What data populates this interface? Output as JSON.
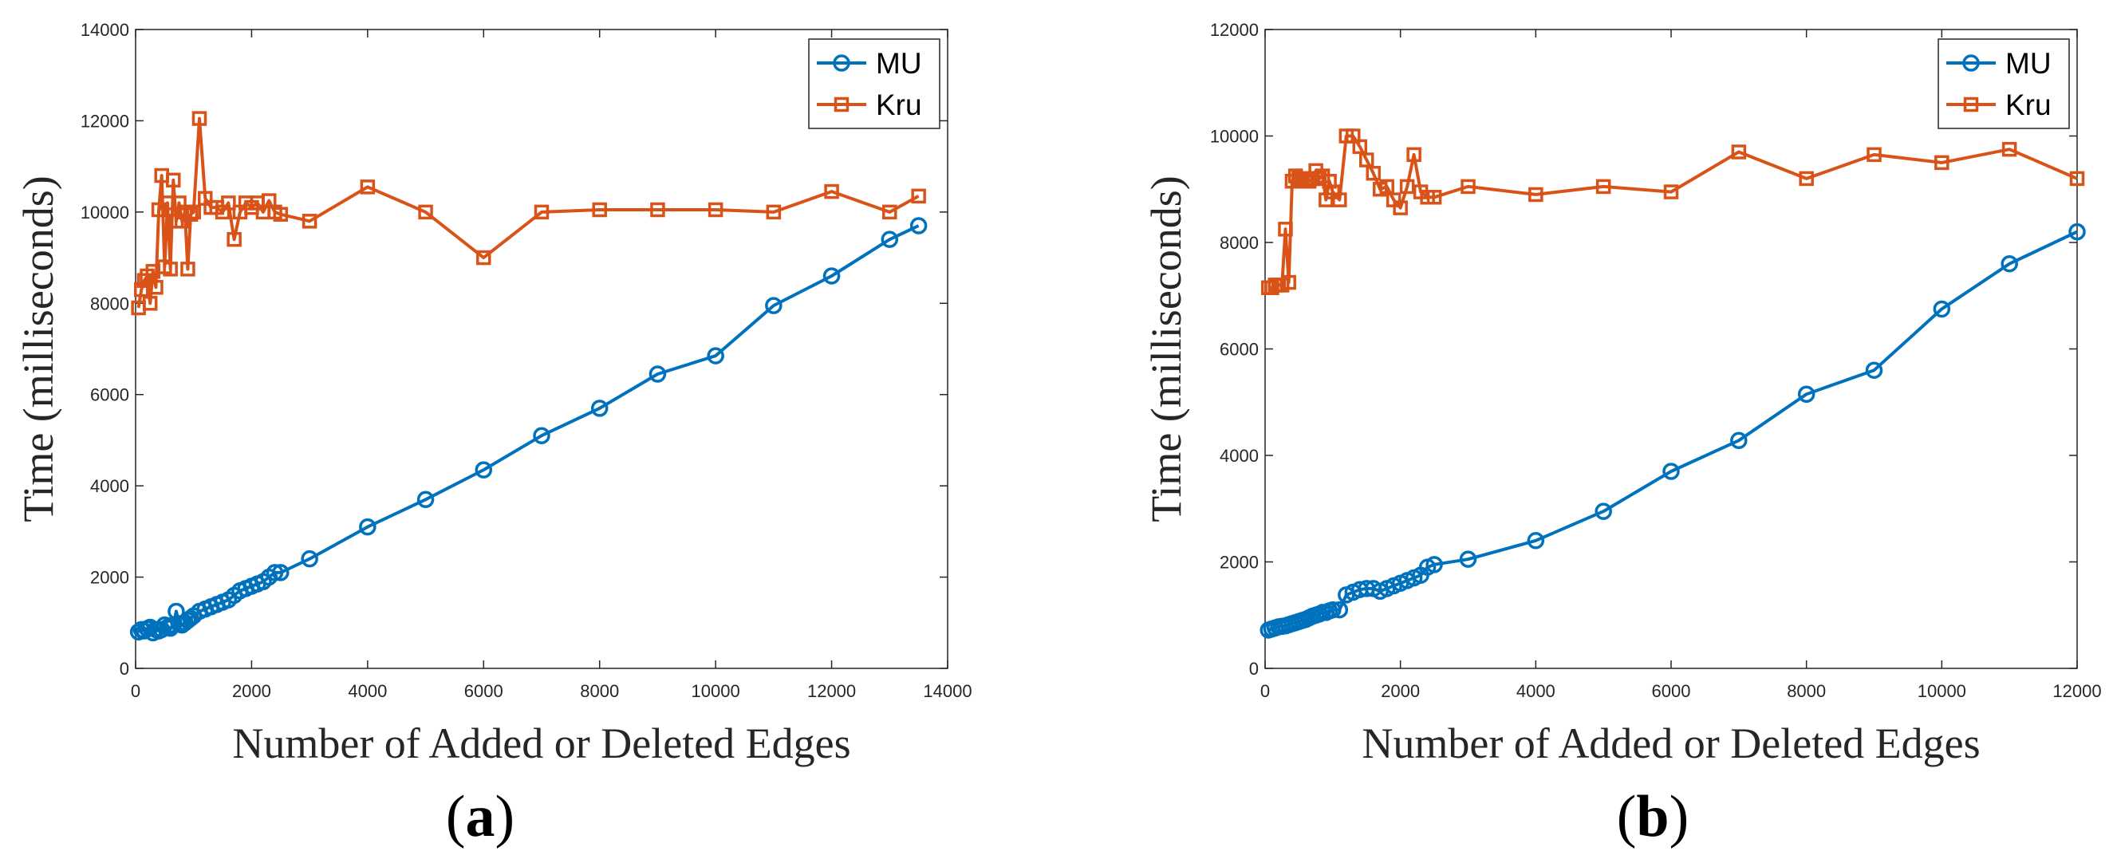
{
  "colors": {
    "mu": "#0072BD",
    "kru": "#D95319",
    "axis": "#262626"
  },
  "chart_data": [
    {
      "type": "line",
      "panel_label": "a",
      "xlabel": "Number of Added or Deleted Edges",
      "ylabel": "Time (milliseconds)",
      "xlim": [
        0,
        14000
      ],
      "ylim": [
        0,
        14000
      ],
      "xticks": [
        0,
        2000,
        4000,
        6000,
        8000,
        10000,
        12000,
        14000
      ],
      "yticks": [
        0,
        2000,
        4000,
        6000,
        8000,
        10000,
        12000,
        14000
      ],
      "legend_position": "top-right",
      "series": [
        {
          "name": "MU",
          "marker": "circle",
          "x": [
            50,
            100,
            150,
            200,
            250,
            300,
            350,
            400,
            450,
            500,
            550,
            600,
            650,
            700,
            750,
            800,
            850,
            900,
            950,
            1000,
            1100,
            1200,
            1300,
            1400,
            1500,
            1600,
            1700,
            1800,
            1900,
            2000,
            2100,
            2200,
            2300,
            2400,
            2500,
            3000,
            4000,
            5000,
            6000,
            7000,
            8000,
            9000,
            10000,
            11000,
            12000,
            13000,
            13500
          ],
          "y": [
            800,
            850,
            820,
            870,
            900,
            780,
            850,
            820,
            850,
            950,
            900,
            880,
            950,
            1250,
            980,
            950,
            1000,
            1050,
            1100,
            1150,
            1250,
            1300,
            1350,
            1400,
            1450,
            1500,
            1600,
            1700,
            1750,
            1800,
            1850,
            1900,
            2000,
            2100,
            2100,
            2400,
            3100,
            3700,
            4350,
            5100,
            5700,
            6450,
            6850,
            7950,
            8600,
            9400,
            9700
          ]
        },
        {
          "name": "Kru",
          "marker": "square",
          "x": [
            50,
            100,
            150,
            200,
            250,
            300,
            350,
            400,
            450,
            500,
            550,
            600,
            650,
            700,
            750,
            800,
            850,
            900,
            950,
            1000,
            1100,
            1200,
            1300,
            1400,
            1500,
            1600,
            1700,
            1800,
            1900,
            2000,
            2100,
            2200,
            2300,
            2400,
            2500,
            3000,
            4000,
            5000,
            6000,
            7000,
            8000,
            9000,
            10000,
            11000,
            12000,
            13000,
            13500
          ],
          "y": [
            7900,
            8300,
            8500,
            8600,
            8000,
            8700,
            8350,
            10050,
            10800,
            8800,
            10200,
            8750,
            10700,
            9800,
            10200,
            9800,
            10000,
            8750,
            9950,
            10000,
            12050,
            10300,
            10100,
            10100,
            10000,
            10200,
            9400,
            10000,
            10200,
            10100,
            10200,
            10000,
            10250,
            10000,
            9950,
            9800,
            10550,
            10000,
            9000,
            10000,
            10050,
            10050,
            10050,
            10000,
            10450,
            10000,
            10350
          ]
        }
      ]
    },
    {
      "type": "line",
      "panel_label": "b",
      "xlabel": "Number of Added or Deleted Edges",
      "ylabel": "Time (milliseconds)",
      "xlim": [
        0,
        12000
      ],
      "ylim": [
        0,
        12000
      ],
      "xticks": [
        0,
        2000,
        4000,
        6000,
        8000,
        10000,
        12000
      ],
      "yticks": [
        0,
        2000,
        4000,
        6000,
        8000,
        10000,
        12000
      ],
      "legend_position": "top-right",
      "series": [
        {
          "name": "MU",
          "marker": "circle",
          "x": [
            50,
            100,
            150,
            200,
            250,
            300,
            350,
            400,
            450,
            500,
            550,
            600,
            650,
            700,
            750,
            800,
            850,
            900,
            950,
            1000,
            1100,
            1200,
            1300,
            1400,
            1500,
            1600,
            1700,
            1800,
            1900,
            2000,
            2100,
            2200,
            2300,
            2400,
            2500,
            3000,
            4000,
            5000,
            6000,
            7000,
            8000,
            9000,
            10000,
            11000,
            12000
          ],
          "y": [
            720,
            740,
            760,
            780,
            790,
            800,
            820,
            840,
            860,
            880,
            900,
            920,
            950,
            980,
            1000,
            1020,
            1050,
            1050,
            1080,
            1100,
            1100,
            1380,
            1430,
            1480,
            1500,
            1500,
            1450,
            1500,
            1550,
            1600,
            1650,
            1700,
            1750,
            1900,
            1950,
            2050,
            2400,
            2950,
            3700,
            4280,
            5150,
            5600,
            6750,
            7600,
            8200
          ]
        },
        {
          "name": "Kru",
          "marker": "square",
          "x": [
            50,
            100,
            150,
            200,
            250,
            300,
            350,
            400,
            450,
            500,
            550,
            600,
            650,
            700,
            750,
            800,
            850,
            900,
            950,
            1000,
            1100,
            1200,
            1300,
            1400,
            1500,
            1600,
            1700,
            1800,
            1900,
            2000,
            2100,
            2200,
            2300,
            2400,
            2500,
            3000,
            4000,
            5000,
            6000,
            7000,
            8000,
            9000,
            10000,
            11000,
            12000
          ],
          "y": [
            7150,
            7150,
            7200,
            7200,
            7200,
            8250,
            7250,
            9150,
            9250,
            9200,
            9150,
            9200,
            9150,
            9200,
            9350,
            9200,
            9250,
            8800,
            9150,
            8950,
            8800,
            10000,
            10000,
            9800,
            9550,
            9300,
            9000,
            9050,
            8800,
            8650,
            9050,
            9650,
            8950,
            8850,
            8850,
            9050,
            8900,
            9050,
            8950,
            9700,
            9200,
            9650,
            9500,
            9750,
            9200
          ]
        }
      ]
    }
  ]
}
